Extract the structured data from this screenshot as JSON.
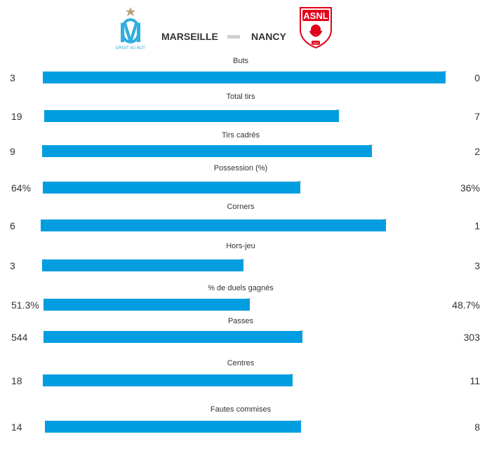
{
  "match": {
    "home_team": "MARSEILLE",
    "away_team": "NANCY",
    "home_logo_icon": "om-logo-icon",
    "home_logo_text": "DROIT AU BUT",
    "away_logo_icon": "asnl-logo-icon",
    "away_logo_text": "ASNL",
    "away_logo_year": "1967"
  },
  "colors": {
    "bar": "#009ee0",
    "home_logo": "#2faee0",
    "away_logo": "#e2001a"
  },
  "stats": [
    {
      "label": "Buts",
      "home": "3",
      "away": "0",
      "bar_fraction": 1.0
    },
    {
      "label": "Total tirs",
      "home": "19",
      "away": "7",
      "bar_fraction": 0.731
    },
    {
      "label": "Tirs cadrés",
      "home": "9",
      "away": "2",
      "bar_fraction": 0.818
    },
    {
      "label": "Possession (%)",
      "home": "64%",
      "away": "36%",
      "bar_fraction": 0.64
    },
    {
      "label": "Corners",
      "home": "6",
      "away": "1",
      "bar_fraction": 0.857
    },
    {
      "label": "Hors-jeu",
      "home": "3",
      "away": "3",
      "bar_fraction": 0.5
    },
    {
      "label": "% de duels gagnés",
      "home": "51.3%",
      "away": "48.7%",
      "bar_fraction": 0.513
    },
    {
      "label": "Passes",
      "home": "544",
      "away": "303",
      "bar_fraction": 0.642
    },
    {
      "label": "Centres",
      "home": "18",
      "away": "11",
      "bar_fraction": 0.621
    },
    {
      "label": "Fautes commises",
      "home": "14",
      "away": "8",
      "bar_fraction": 0.636
    }
  ]
}
